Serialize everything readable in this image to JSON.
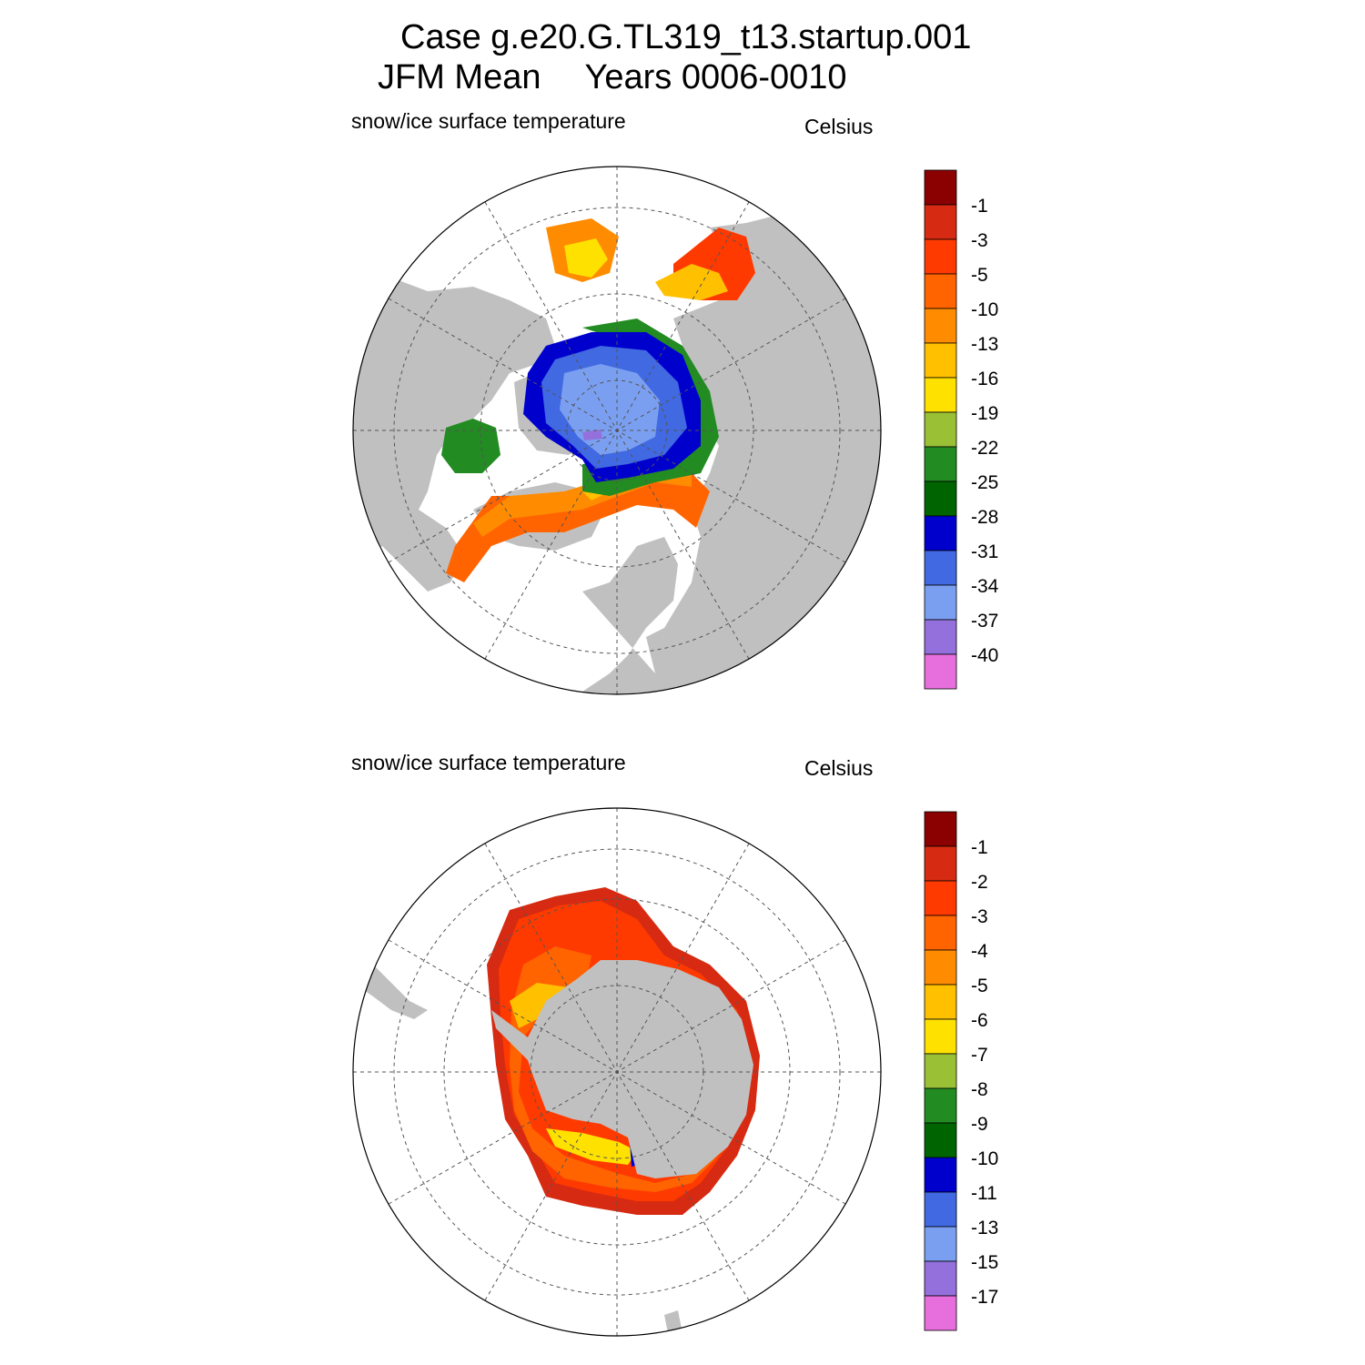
{
  "title_line1": "Case g.e20.G.TL319_t13.startup.001",
  "title_line2_left": "JFM Mean",
  "title_line2_right": "Years 0006-0010",
  "colors": {
    "land": "#c0c0c0",
    "ocean": "#ffffff",
    "grid": "#555555",
    "outline": "#000000"
  },
  "panels": [
    {
      "id": "north",
      "hemisphere": "Northern",
      "left_label": "snow/ice surface temperature",
      "right_label": "Celsius",
      "colorbar": {
        "colors": [
          "#8b0000",
          "#d62b12",
          "#ff3a00",
          "#ff6400",
          "#ff8c00",
          "#ffc000",
          "#ffe100",
          "#9ac035",
          "#228b22",
          "#006400",
          "#0000cd",
          "#4169e1",
          "#7b9ff0",
          "#9370db",
          "#e76fdd"
        ],
        "labels": [
          "-1",
          "-3",
          "-5",
          "-10",
          "-13",
          "-16",
          "-19",
          "-22",
          "-25",
          "-28",
          "-31",
          "-34",
          "-37",
          "-40"
        ]
      }
    },
    {
      "id": "south",
      "hemisphere": "Southern",
      "left_label": "snow/ice surface temperature",
      "right_label": "Celsius",
      "colorbar": {
        "colors": [
          "#8b0000",
          "#d62b12",
          "#ff3a00",
          "#ff6400",
          "#ff8c00",
          "#ffc000",
          "#ffe100",
          "#9ac035",
          "#228b22",
          "#006400",
          "#0000cd",
          "#4169e1",
          "#7b9ff0",
          "#9370db",
          "#e76fdd"
        ],
        "labels": [
          "-1",
          "-2",
          "-3",
          "-4",
          "-5",
          "-6",
          "-7",
          "-8",
          "-9",
          "-10",
          "-11",
          "-13",
          "-15",
          "-17"
        ]
      }
    }
  ]
}
